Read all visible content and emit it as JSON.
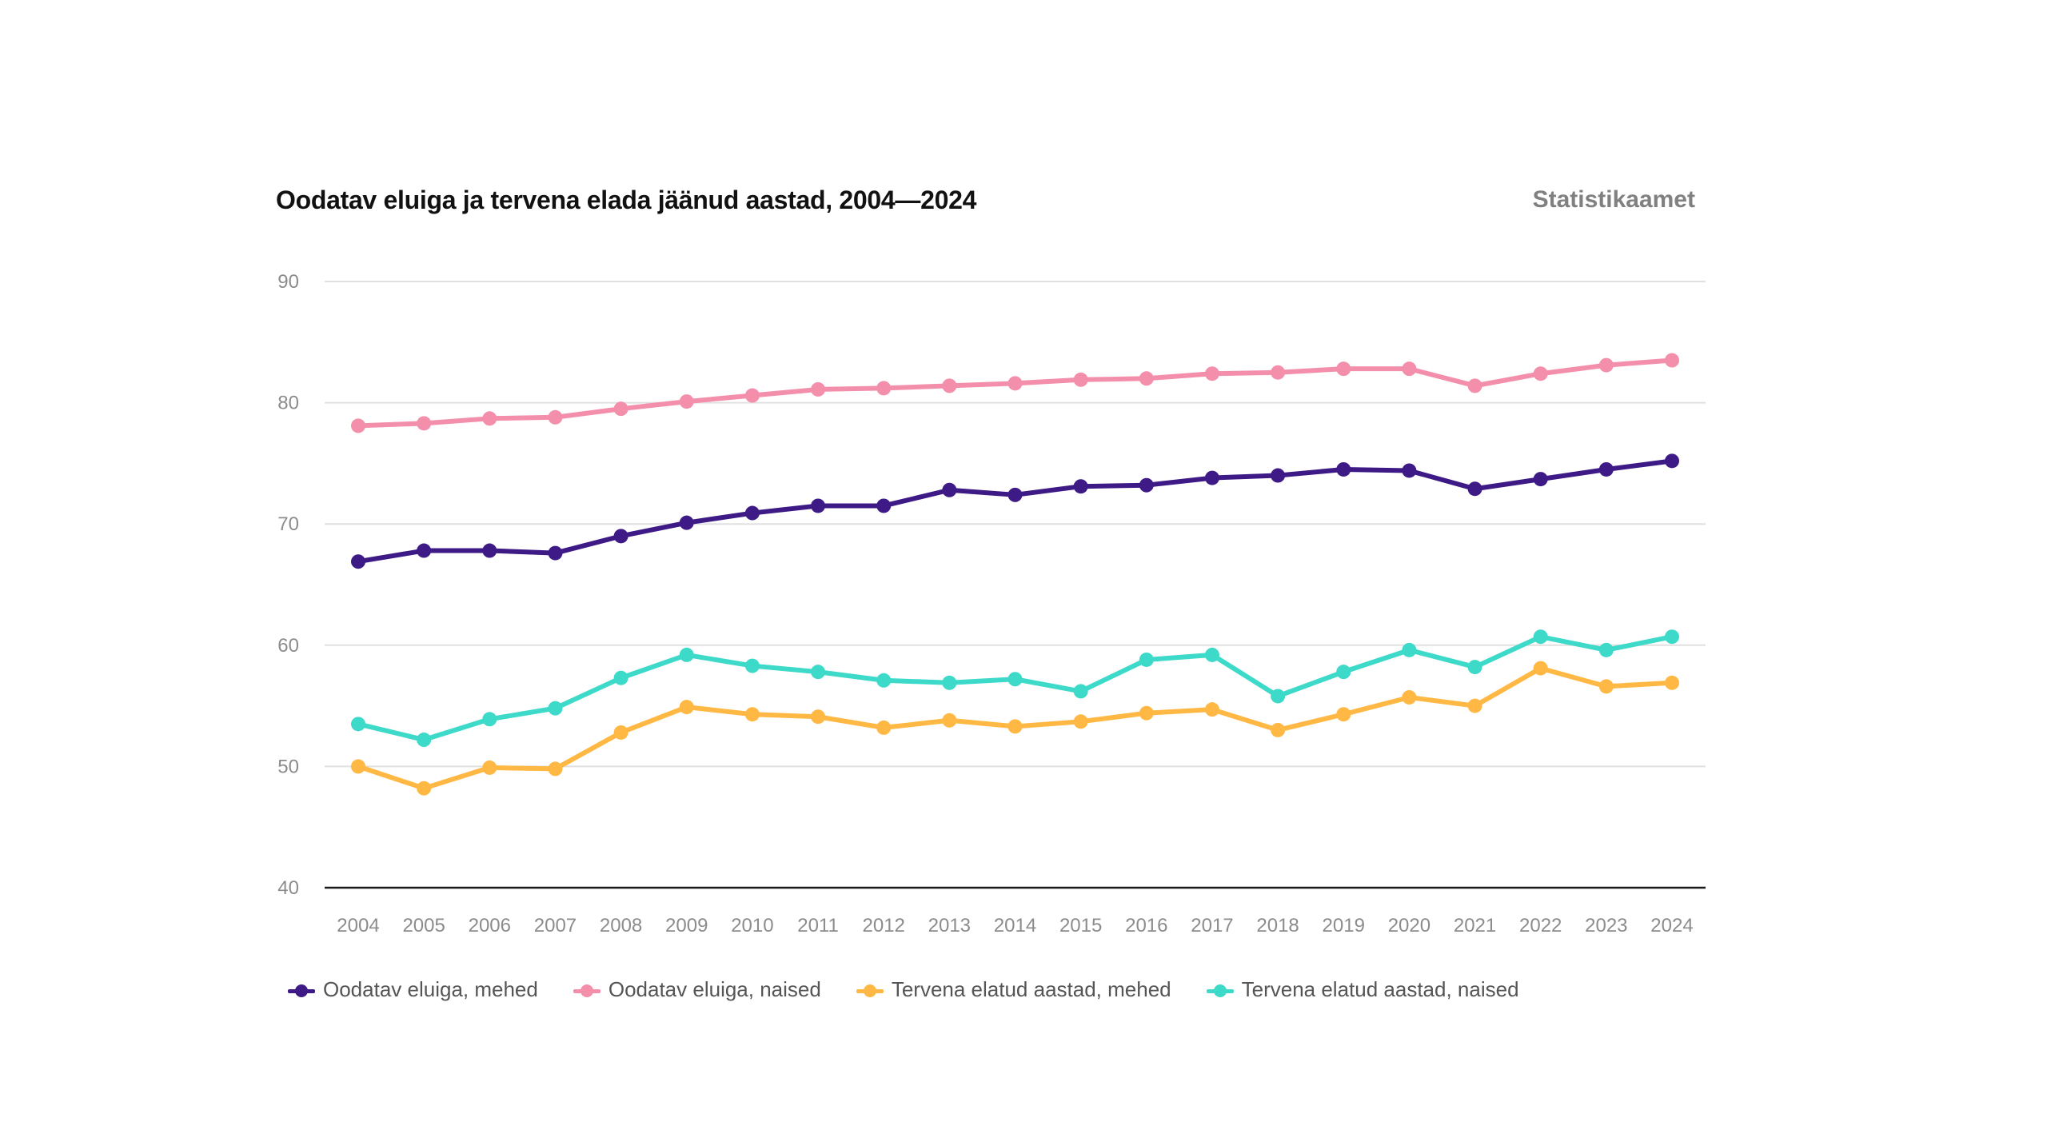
{
  "header": {
    "title": "Oodatav eluiga ja tervena elada jäänud aastad, 2004—2024",
    "source": "Statistikaamet"
  },
  "chart_data": {
    "type": "line",
    "title": "Oodatav eluiga ja tervena elada jäänud aastad, 2004—2024",
    "xlabel": "",
    "ylabel": "",
    "ylim": [
      40,
      90
    ],
    "yticks": [
      40,
      50,
      60,
      70,
      80,
      90
    ],
    "grid": true,
    "legend_position": "bottom-left",
    "x": [
      "2004",
      "2005",
      "2006",
      "2007",
      "2008",
      "2009",
      "2010",
      "2011",
      "2012",
      "2013",
      "2014",
      "2015",
      "2016",
      "2017",
      "2018",
      "2019",
      "2020",
      "2021",
      "2022",
      "2023",
      "2024"
    ],
    "series": [
      {
        "name": "Oodatav eluiga, mehed",
        "color": "#3d1a86",
        "values": [
          66.9,
          67.8,
          67.8,
          67.6,
          69.0,
          70.1,
          70.9,
          71.5,
          71.5,
          72.8,
          72.4,
          73.1,
          73.2,
          73.8,
          74.0,
          74.5,
          74.4,
          72.9,
          73.7,
          74.5,
          75.2
        ]
      },
      {
        "name": "Oodatav eluiga, naised",
        "color": "#f48fab",
        "values": [
          78.1,
          78.3,
          78.7,
          78.8,
          79.5,
          80.1,
          80.6,
          81.1,
          81.2,
          81.4,
          81.6,
          81.9,
          82.0,
          82.4,
          82.5,
          82.8,
          82.8,
          81.4,
          82.4,
          83.1,
          83.5
        ]
      },
      {
        "name": "Tervena elatud aastad, mehed",
        "color": "#ffb844",
        "values": [
          50.0,
          48.2,
          49.9,
          49.8,
          52.8,
          54.9,
          54.3,
          54.1,
          53.2,
          53.8,
          53.3,
          53.7,
          54.4,
          54.7,
          53.0,
          54.3,
          55.7,
          55.0,
          58.1,
          56.6,
          56.9
        ]
      },
      {
        "name": "Tervena elatud aastad, naised",
        "color": "#3dd9c9",
        "values": [
          53.5,
          52.2,
          53.9,
          54.8,
          57.3,
          59.2,
          58.3,
          57.8,
          57.1,
          56.9,
          57.2,
          56.2,
          58.8,
          59.2,
          55.8,
          57.8,
          59.6,
          58.2,
          60.7,
          59.6,
          60.7
        ]
      }
    ]
  }
}
